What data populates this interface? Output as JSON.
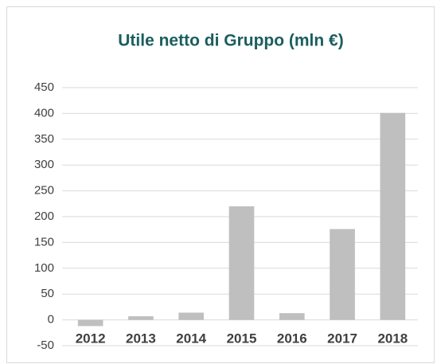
{
  "chart_data": {
    "type": "bar",
    "title": "Utile netto di Gruppo (mln €)",
    "categories": [
      "2012",
      "2013",
      "2014",
      "2015",
      "2016",
      "2017",
      "2018"
    ],
    "values": [
      -12,
      7,
      14,
      220,
      13,
      176,
      401
    ],
    "color": "#bfbfbf",
    "ylim": [
      -50,
      450
    ],
    "yticks": [
      -50,
      0,
      50,
      100,
      150,
      200,
      250,
      300,
      350,
      400,
      450
    ],
    "grid": true
  }
}
